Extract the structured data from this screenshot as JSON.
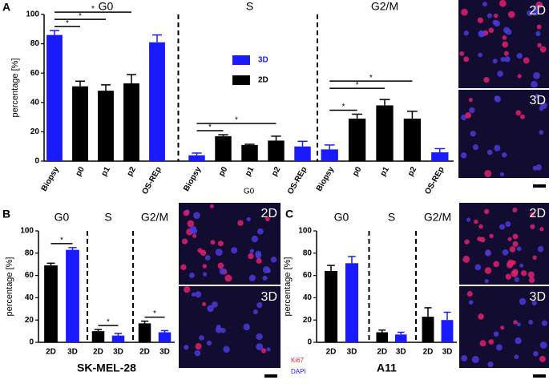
{
  "chart_data": [
    {
      "type": "bar",
      "panel": "A",
      "ylabel": "percentage [%]",
      "xlabel": "G0",
      "ylim": [
        0,
        100
      ],
      "yticks": [
        0,
        20,
        40,
        60,
        80,
        100
      ],
      "legend": [
        {
          "name": "3D",
          "color": "#1a1aff"
        },
        {
          "name": "2D",
          "color": "#000000"
        }
      ],
      "groups": [
        {
          "name": "G0",
          "categories": [
            "Biopsy",
            "p0",
            "p1",
            "p2",
            "OS-REp"
          ],
          "values": [
            86,
            51,
            48,
            53,
            81
          ],
          "errors": [
            3,
            3.5,
            4,
            6,
            5
          ],
          "colors": [
            "#1a1aff",
            "#000000",
            "#000000",
            "#000000",
            "#1a1aff"
          ],
          "significance": [
            {
              "label": "*",
              "from": 0,
              "to": 1
            },
            {
              "label": "*",
              "from": 0,
              "to": 2
            },
            {
              "label": "*",
              "from": 0,
              "to": 3
            }
          ]
        },
        {
          "name": "S",
          "categories": [
            "Biopsy",
            "p0",
            "p1",
            "p2",
            "OS-REp"
          ],
          "values": [
            4,
            17,
            11,
            14,
            10
          ],
          "errors": [
            1.5,
            1,
            0.5,
            3,
            3.5
          ],
          "colors": [
            "#1a1aff",
            "#000000",
            "#000000",
            "#000000",
            "#1a1aff"
          ],
          "significance": [
            {
              "label": "*",
              "from": 0,
              "to": 1
            },
            {
              "label": "*",
              "from": 0,
              "to": 3
            }
          ]
        },
        {
          "name": "G2/M",
          "categories": [
            "Biopsy",
            "p0",
            "p1",
            "p2",
            "OS-REp"
          ],
          "values": [
            8,
            29,
            38,
            29,
            6
          ],
          "errors": [
            3,
            3,
            4,
            5,
            2.5
          ],
          "colors": [
            "#1a1aff",
            "#000000",
            "#000000",
            "#000000",
            "#1a1aff"
          ],
          "significance": [
            {
              "label": "*",
              "from": 0,
              "to": 1
            },
            {
              "label": "*",
              "from": 0,
              "to": 2
            },
            {
              "label": "*",
              "from": 0,
              "to": 3
            }
          ]
        }
      ],
      "images": [
        "2D",
        "3D"
      ]
    },
    {
      "type": "bar",
      "panel": "B",
      "ylabel": "percentage [%]",
      "sample": "SK-MEL-28",
      "ylim": [
        0,
        100
      ],
      "yticks": [
        0,
        20,
        40,
        60,
        80,
        100
      ],
      "groups": [
        {
          "name": "G0",
          "categories": [
            "2D",
            "3D"
          ],
          "values": [
            69,
            83
          ],
          "errors": [
            2,
            2
          ],
          "colors": [
            "#000000",
            "#1a1aff"
          ],
          "significance": [
            {
              "label": "*",
              "from": 0,
              "to": 1
            }
          ]
        },
        {
          "name": "S",
          "categories": [
            "2D",
            "3D"
          ],
          "values": [
            10,
            6
          ],
          "errors": [
            1.5,
            2
          ],
          "colors": [
            "#000000",
            "#1a1aff"
          ],
          "significance": [
            {
              "label": "*",
              "from": 0,
              "to": 1
            }
          ]
        },
        {
          "name": "G2/M",
          "categories": [
            "2D",
            "3D"
          ],
          "values": [
            17,
            9
          ],
          "errors": [
            2,
            1.5
          ],
          "colors": [
            "#000000",
            "#1a1aff"
          ],
          "significance": [
            {
              "label": "*",
              "from": 0,
              "to": 1
            }
          ]
        }
      ],
      "images": [
        "2D",
        "3D"
      ]
    },
    {
      "type": "bar",
      "panel": "C",
      "ylabel": "percentage [%]",
      "sample": "A11",
      "ylim": [
        0,
        100
      ],
      "yticks": [
        0,
        20,
        40,
        60,
        80,
        100
      ],
      "groups": [
        {
          "name": "G0",
          "categories": [
            "2D",
            "3D"
          ],
          "values": [
            64,
            71
          ],
          "errors": [
            5,
            6
          ],
          "colors": [
            "#000000",
            "#1a1aff"
          ]
        },
        {
          "name": "S",
          "categories": [
            "2D",
            "3D"
          ],
          "values": [
            9,
            7
          ],
          "errors": [
            2,
            2
          ],
          "colors": [
            "#000000",
            "#1a1aff"
          ]
        },
        {
          "name": "G2/M",
          "categories": [
            "2D",
            "3D"
          ],
          "values": [
            23,
            20
          ],
          "errors": [
            8,
            7
          ],
          "colors": [
            "#000000",
            "#1a1aff"
          ]
        }
      ],
      "images": [
        "2D",
        "3D"
      ]
    }
  ],
  "stains": [
    {
      "text": "Ki67",
      "color": "#ff2020"
    },
    {
      "text": "DAPI",
      "color": "#1a1aff"
    }
  ]
}
